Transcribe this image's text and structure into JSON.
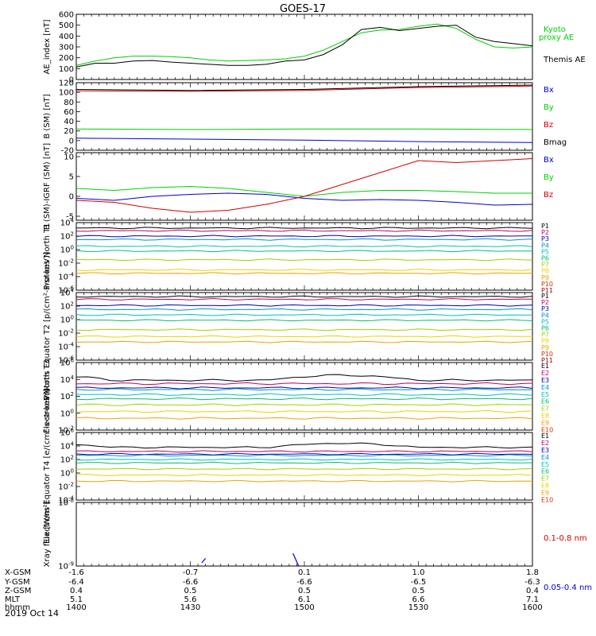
{
  "title": "GOES-17",
  "date_label": "2019 Oct 14",
  "colors": {
    "black": "#000000",
    "red": "#d00000",
    "green": "#00d000",
    "blue": "#0000d0",
    "channels": [
      "#000000",
      "#c00060",
      "#0000b0",
      "#0090d0",
      "#00c0c0",
      "#00c070",
      "#a0d000",
      "#f0d000",
      "#f0a000",
      "#d03000",
      "#a00000"
    ]
  },
  "time_axis": {
    "start_minutes": 0,
    "end_minutes": 120,
    "tick_minutes": [
      0,
      30,
      60,
      90,
      120
    ]
  },
  "ephemeris": {
    "row_labels": [
      "X-GSM",
      "Y-GSM",
      "Z-GSM",
      "MLT",
      "hhmm"
    ],
    "columns": [
      [
        "-1.6",
        "-6.4",
        "0.4",
        "5.1",
        "1400"
      ],
      [
        "-0.7",
        "-6.6",
        "0.5",
        "5.6",
        "1430"
      ],
      [
        "0.1",
        "-6.6",
        "0.5",
        "6.1",
        "1500"
      ],
      [
        "1.0",
        "-6.5",
        "0.5",
        "6.6",
        "1530"
      ],
      [
        "1.8",
        "-6.3",
        "0.4",
        "7.1",
        "1600"
      ]
    ]
  },
  "chart_data": [
    {
      "type": "line",
      "ylabel": "AE_index [nT]",
      "ylim": [
        0,
        600
      ],
      "yticks": [
        "0",
        "100",
        "200",
        "300",
        "400",
        "500",
        "600"
      ],
      "series": [
        {
          "name": "Kyoto proxy AE",
          "color": "#00d000",
          "x": [
            0,
            5,
            10,
            15,
            20,
            25,
            30,
            35,
            40,
            45,
            50,
            55,
            60,
            65,
            70,
            75,
            80,
            85,
            90,
            95,
            100,
            105,
            110,
            115,
            120
          ],
          "y": [
            130,
            170,
            200,
            215,
            215,
            210,
            200,
            180,
            170,
            175,
            180,
            190,
            215,
            270,
            350,
            430,
            455,
            460,
            490,
            510,
            470,
            370,
            300,
            290,
            300
          ]
        },
        {
          "name": "Themis AE",
          "color": "#000000",
          "x": [
            0,
            5,
            10,
            15,
            20,
            25,
            30,
            35,
            40,
            45,
            50,
            55,
            60,
            65,
            70,
            75,
            80,
            85,
            90,
            95,
            100,
            105,
            110,
            115,
            120
          ],
          "y": [
            115,
            150,
            150,
            170,
            175,
            160,
            150,
            140,
            130,
            130,
            140,
            170,
            180,
            230,
            320,
            460,
            480,
            450,
            470,
            490,
            500,
            390,
            350,
            330,
            310
          ]
        }
      ]
    },
    {
      "type": "line",
      "ylabel": "B (SM) [nT]",
      "ylim": [
        -20,
        120
      ],
      "yticks": [
        "-20",
        "0",
        "20",
        "40",
        "60",
        "80",
        "100",
        "120"
      ],
      "series": [
        {
          "name": "Bx",
          "color": "#0000d0",
          "x": [
            0,
            30,
            60,
            90,
            120
          ],
          "y": [
            5,
            3,
            1,
            -2,
            -4
          ]
        },
        {
          "name": "By",
          "color": "#00d000",
          "x": [
            0,
            30,
            60,
            90,
            120
          ],
          "y": [
            24,
            23,
            24,
            24,
            23
          ]
        },
        {
          "name": "Bz",
          "color": "#d00000",
          "x": [
            0,
            30,
            60,
            90,
            120
          ],
          "y": [
            103,
            102,
            104,
            110,
            113
          ]
        },
        {
          "name": "Bmag",
          "color": "#000000",
          "x": [
            0,
            30,
            60,
            90,
            120
          ],
          "y": [
            106,
            104,
            106,
            112,
            115
          ]
        }
      ]
    },
    {
      "type": "line",
      "ylabel": "B (SM)-IGRF (SM) [nT]",
      "ylim": [
        -6,
        11
      ],
      "yticks": [
        "-5",
        "0",
        "5",
        "10"
      ],
      "series": [
        {
          "name": "Bx",
          "color": "#0000d0",
          "x": [
            0,
            10,
            20,
            30,
            40,
            50,
            60,
            70,
            80,
            90,
            100,
            110,
            120
          ],
          "y": [
            -0.5,
            -1.0,
            0,
            0.5,
            0.8,
            0.5,
            -0.5,
            -1.0,
            -0.8,
            -1.0,
            -1.5,
            -2.2,
            -2.0
          ]
        },
        {
          "name": "By",
          "color": "#00d000",
          "x": [
            0,
            10,
            20,
            30,
            40,
            50,
            60,
            70,
            80,
            90,
            100,
            110,
            120
          ],
          "y": [
            2,
            1.5,
            2.2,
            2.5,
            2,
            1,
            0,
            1,
            1.5,
            1.5,
            1.2,
            0.8,
            0.8
          ]
        },
        {
          "name": "Bz",
          "color": "#d00000",
          "x": [
            0,
            10,
            20,
            30,
            40,
            50,
            60,
            70,
            80,
            90,
            100,
            110,
            120
          ],
          "y": [
            -1,
            -1.5,
            -3,
            -4,
            -3.5,
            -2,
            0,
            3,
            6,
            9,
            8.5,
            9,
            9.5
          ]
        }
      ]
    },
    {
      "type": "line",
      "log": true,
      "ylabel": "Protons North T1",
      "ylim_exp": [
        -6,
        4
      ],
      "yticks": [
        "10^4",
        "10^2",
        "10^0",
        "10^-2",
        "10^-4",
        "10^-6"
      ],
      "channels": [
        "P1",
        "P2",
        "P3",
        "P4",
        "P5",
        "P6",
        "P7",
        "P8",
        "P9",
        "P10",
        "P11"
      ],
      "series_log10": [
        3.2,
        2.8,
        2.0,
        1.5,
        0.5,
        -0.2,
        -1.5,
        -3.0,
        -3.5
      ]
    },
    {
      "type": "line",
      "log": true,
      "ylabel": "Protons Equator T2 [p/(cm²-s-sr-keV)]",
      "ylim_exp": [
        -6,
        4
      ],
      "yticks": [
        "10^4",
        "10^2",
        "10^0",
        "10^-2",
        "10^-4",
        "10^-6"
      ],
      "channels": [
        "P1",
        "P2",
        "P3",
        "P4",
        "P5",
        "P6",
        "P7",
        "P8",
        "P9",
        "P10",
        "P11"
      ],
      "series_log10": [
        3.4,
        3.0,
        2.1,
        1.5,
        0.7,
        -0.1,
        -1.5,
        -2.5,
        -3.3
      ]
    },
    {
      "type": "line",
      "log": true,
      "ylabel": "Electrons North T3",
      "ylim_exp": [
        -2,
        6
      ],
      "yticks": [
        "10^6",
        "10^4",
        "10^2",
        "10^0",
        "10^-2"
      ],
      "channels": [
        "E1",
        "E2",
        "E3",
        "E4",
        "E5",
        "E6",
        "E7",
        "E8",
        "E9",
        "E10"
      ],
      "series_log10": [
        3.9,
        3.5,
        3.0,
        2.8,
        2.2,
        1.7,
        1.0,
        0.2,
        -0.6
      ]
    },
    {
      "type": "line",
      "log": true,
      "ylabel": "Electrons Equator T4 [e/(cm²-s-sr-keV)]",
      "ylim_exp": [
        -4,
        6
      ],
      "yticks": [
        "10^6",
        "10^4",
        "10^2",
        "10^0",
        "10^-2",
        "10^-4"
      ],
      "channels": [
        "E1",
        "E2",
        "E3",
        "E4",
        "E5",
        "E6",
        "E7",
        "E8",
        "E9",
        "E10"
      ],
      "series_log10": [
        3.8,
        3.2,
        2.8,
        2.6,
        2.0,
        1.5,
        0.6,
        -0.3,
        -1.2
      ]
    },
    {
      "type": "line",
      "log": true,
      "ylabel": "Xray flux [W/m²]",
      "ylim_exp": [
        -9,
        -8
      ],
      "yticks": [
        "10^-8",
        "10^-9"
      ],
      "series": [
        {
          "name": "0.1-0.8 nm",
          "color": "#d00000",
          "x": [],
          "y": []
        },
        {
          "name": "0.05-0.4 nm",
          "color": "#0000d0",
          "segments": [
            {
              "x": [
                33,
                34
              ],
              "y_log10": [
                -8.95,
                -8.88
              ]
            },
            {
              "x": [
                57,
                58.5
              ],
              "y_log10": [
                -8.8,
                -9.0
              ]
            }
          ]
        }
      ]
    }
  ]
}
